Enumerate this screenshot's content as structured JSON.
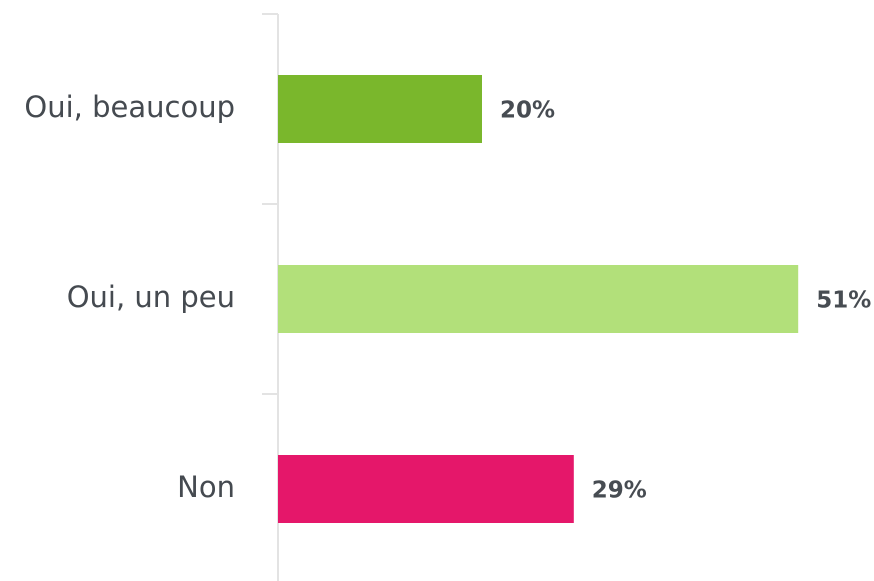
{
  "chart_data": {
    "type": "bar",
    "orientation": "horizontal",
    "categories": [
      "Oui, beaucoup",
      "Oui, un peu",
      "Non"
    ],
    "values": [
      20,
      51,
      29
    ],
    "value_labels": [
      "20%",
      "51%",
      "29%"
    ],
    "colors": [
      "#7ab72c",
      "#b2e07a",
      "#e5176a"
    ]
  }
}
